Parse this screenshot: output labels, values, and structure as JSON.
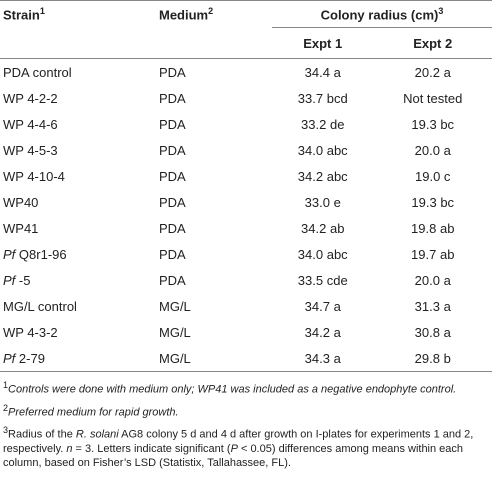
{
  "header": {
    "strain": "Strain",
    "strain_sup": "1",
    "medium": "Medium",
    "medium_sup": "2",
    "colony": "Colony radius (cm)",
    "colony_sup": "3",
    "expt1": "Expt 1",
    "expt2": "Expt 2"
  },
  "table": {
    "rows": [
      {
        "strain": "PDA control",
        "medium": "PDA",
        "expt1": "34.4 a",
        "expt2": "20.2 a"
      },
      {
        "strain": "WP 4-2-2",
        "medium": "PDA",
        "expt1": "33.7 bcd",
        "expt2": "Not tested"
      },
      {
        "strain": "WP 4-4-6",
        "medium": "PDA",
        "expt1": "33.2 de",
        "expt2": "19.3 bc"
      },
      {
        "strain": "WP 4-5-3",
        "medium": "PDA",
        "expt1": "34.0 abc",
        "expt2": "20.0 a"
      },
      {
        "strain": "WP 4-10-4",
        "medium": "PDA",
        "expt1": "34.2 abc",
        "expt2": "19.0 c"
      },
      {
        "strain": "WP40",
        "medium": "PDA",
        "expt1": "33.0 e",
        "expt2": "19.3 bc"
      },
      {
        "strain": "WP41",
        "medium": "PDA",
        "expt1": "34.2 ab",
        "expt2": "19.8 ab"
      },
      {
        "strain_italic": "Pf",
        "strain": "Q8r1-96",
        "medium": "PDA",
        "expt1": "34.0 abc",
        "expt2": "19.7 ab"
      },
      {
        "strain_italic": "Pf",
        "strain": "-5",
        "medium": "PDA",
        "expt1": "33.5 cde",
        "expt2": "20.0 a"
      },
      {
        "strain": "MG/L control",
        "medium": "MG/L",
        "expt1": "34.7 a",
        "expt2": "31.3 a"
      },
      {
        "strain": "WP 4-3-2",
        "medium": "MG/L",
        "expt1": "34.2 a",
        "expt2": "30.8 a"
      },
      {
        "strain_italic": "Pf",
        "strain": "2-79",
        "medium": "MG/L",
        "expt1": "34.3 a",
        "expt2": "29.8 b"
      }
    ]
  },
  "footnotes": [
    {
      "sup": "1",
      "parts": [
        "Controls were done with medium only; WP41 was included as a negative endophyte control."
      ]
    },
    {
      "sup": "2",
      "parts": [
        "Preferred medium for rapid growth."
      ]
    },
    {
      "sup": "3",
      "parts": [
        "Radius of the ",
        "R. solani",
        " AG8 colony 5 d and 4 d after growth on I-plates for experiments 1 and 2, respectively. ",
        "n",
        " = 3. Letters indicate significant (",
        "P",
        " < 0.05) differences among means within each column, based on Fisher’s LSD (Statistix, Tallahassee, FL)."
      ]
    }
  ]
}
